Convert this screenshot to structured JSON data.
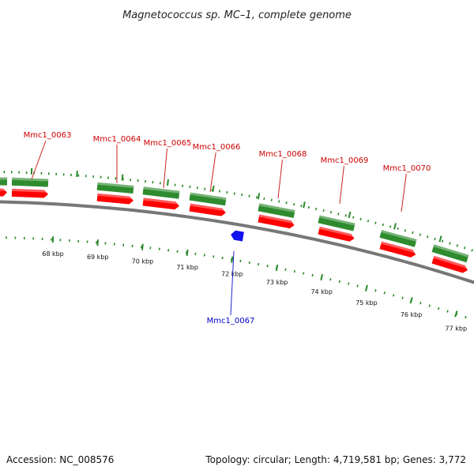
{
  "title": "Magnetococcus sp. MC–1, complete genome",
  "accession_text": "Accession: NC_008576",
  "summary_text": "Topology: circular; Length: 4,719,581 bp; Genes: 3,772",
  "colors": {
    "forward_label": "#cc0000",
    "reverse_label": "#0000cc",
    "forward_strand_top": "#2e8b2e",
    "forward_strand_bottom": "#ff0000",
    "reverse_marker": "#1010ee",
    "backbone": "#777777",
    "ticks": "#2a8a2a"
  },
  "scale": {
    "unit": "kbp",
    "labels": [
      "68 kbp",
      "69 kbp",
      "70 kbp",
      "71 kbp",
      "72 kbp",
      "73 kbp",
      "74 kbp",
      "75 kbp",
      "76 kbp",
      "77 kbp"
    ]
  },
  "genes": [
    {
      "name": "Mmc1_0063",
      "strand": "forward"
    },
    {
      "name": "Mmc1_0064",
      "strand": "forward"
    },
    {
      "name": "Mmc1_0065",
      "strand": "forward"
    },
    {
      "name": "Mmc1_0066",
      "strand": "forward"
    },
    {
      "name": "Mmc1_0067",
      "strand": "reverse"
    },
    {
      "name": "Mmc1_0068",
      "strand": "forward"
    },
    {
      "name": "Mmc1_0069",
      "strand": "forward"
    },
    {
      "name": "Mmc1_0070",
      "strand": "forward"
    }
  ]
}
